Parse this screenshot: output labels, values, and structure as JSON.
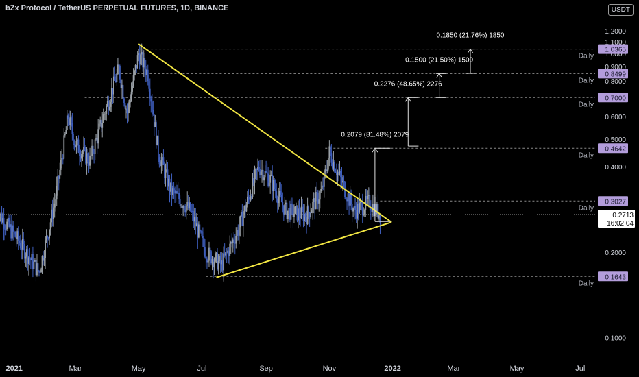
{
  "header": {
    "title": "bZx Protocol / TetherUS PERPETUAL FUTURES, 1D, BINANCE",
    "currency": "USDT"
  },
  "colors": {
    "background": "#000000",
    "candle_up": "#9aa0a6",
    "candle_down": "#3f5fbf",
    "trendline": "#f0e442",
    "level_tag": "#b39ddb",
    "current_price_tag": "#ffffff"
  },
  "chart_data": {
    "type": "candlestick",
    "scale": "log",
    "ylim": [
      0.085,
      1.35
    ],
    "y_ticks": [
      "1.2000",
      "1.1000",
      "1.0000",
      "0.9000",
      "0.8000",
      "0.7000",
      "0.6000",
      "0.5000",
      "0.4000",
      "0.2000",
      "0.1000"
    ],
    "x_ticks": [
      "2021",
      "Mar",
      "May",
      "Jul",
      "Sep",
      "Nov",
      "2022",
      "Mar",
      "May",
      "Jul"
    ],
    "x_tick_dates": [
      "2021-01-01",
      "2021-03-01",
      "2021-05-01",
      "2021-07-01",
      "2021-09-01",
      "2021-11-01",
      "2022-01-01",
      "2022-03-01",
      "2022-05-01",
      "2022-07-01"
    ],
    "price_path": [
      {
        "date": "2020-12-15",
        "price": 0.28
      },
      {
        "date": "2021-01-05",
        "price": 0.22
      },
      {
        "date": "2021-01-25",
        "price": 0.17
      },
      {
        "date": "2021-02-10",
        "price": 0.31
      },
      {
        "date": "2021-02-22",
        "price": 0.6
      },
      {
        "date": "2021-03-01",
        "price": 0.48
      },
      {
        "date": "2021-03-15",
        "price": 0.42
      },
      {
        "date": "2021-03-28",
        "price": 0.6
      },
      {
        "date": "2021-04-12",
        "price": 0.88
      },
      {
        "date": "2021-04-20",
        "price": 0.62
      },
      {
        "date": "2021-05-01",
        "price": 1.0
      },
      {
        "date": "2021-05-10",
        "price": 0.85
      },
      {
        "date": "2021-05-20",
        "price": 0.45
      },
      {
        "date": "2021-06-01",
        "price": 0.33
      },
      {
        "date": "2021-06-20",
        "price": 0.28
      },
      {
        "date": "2021-07-05",
        "price": 0.2
      },
      {
        "date": "2021-07-20",
        "price": 0.18
      },
      {
        "date": "2021-08-05",
        "price": 0.24
      },
      {
        "date": "2021-08-25",
        "price": 0.4
      },
      {
        "date": "2021-09-05",
        "price": 0.36
      },
      {
        "date": "2021-09-20",
        "price": 0.28
      },
      {
        "date": "2021-10-10",
        "price": 0.27
      },
      {
        "date": "2021-10-25",
        "price": 0.33
      },
      {
        "date": "2021-11-01",
        "price": 0.45
      },
      {
        "date": "2021-11-12",
        "price": 0.36
      },
      {
        "date": "2021-11-25",
        "price": 0.28
      },
      {
        "date": "2021-12-10",
        "price": 0.3
      },
      {
        "date": "2021-12-20",
        "price": 0.2713
      }
    ],
    "trendlines": [
      {
        "from": {
          "date": "2021-05-01",
          "price": 1.08
        },
        "to": {
          "date": "2021-12-31",
          "price": 0.255
        }
      },
      {
        "from": {
          "date": "2021-07-15",
          "price": 0.163
        },
        "to": {
          "date": "2021-12-31",
          "price": 0.255
        }
      }
    ],
    "levels": [
      {
        "price": 1.0365,
        "tag": "1.0365",
        "label": "Daily",
        "start_date": "2021-05-01"
      },
      {
        "price": 0.8499,
        "tag": "0.8499",
        "label": "Daily",
        "start_date": "2021-04-10"
      },
      {
        "price": 0.7,
        "tag": "0.7000",
        "label": "Daily",
        "start_date": "2021-03-10"
      },
      {
        "price": 0.4642,
        "tag": "0.4642",
        "label": "Daily",
        "start_date": "2021-10-28"
      },
      {
        "price": 0.3027,
        "tag": "0.3027",
        "label": "Daily",
        "start_date": "2021-12-20"
      },
      {
        "price": 0.1643,
        "tag": "0.1643",
        "label": "Daily",
        "start_date": "2021-07-05"
      }
    ],
    "measurements": [
      {
        "date": "2021-12-15",
        "from": 0.2563,
        "to": 0.4642,
        "label": "0.2079 (81.48%) 2079",
        "from_date": "2021-12-15",
        "to_date": "2021-12-30"
      },
      {
        "date": "2022-01-16",
        "from": 0.4724,
        "to": 0.7,
        "label": "0.2276 (48.65%) 2276",
        "from_date": "2022-01-16",
        "to_date": "2022-01-26"
      },
      {
        "date": "2022-02-15",
        "from": 0.6999,
        "to": 0.8499,
        "label": "0.1500 (21.50%) 1500",
        "from_date": "2022-02-12",
        "to_date": "2022-02-22"
      },
      {
        "date": "2022-03-17",
        "from": 0.8515,
        "to": 1.0365,
        "label": "0.1850 (21.76%) 1850",
        "from_date": "2022-03-12",
        "to_date": "2022-03-22"
      }
    ],
    "current_price": {
      "price": 0.2713,
      "value": "0.2713",
      "countdown": "16:02:04"
    }
  }
}
